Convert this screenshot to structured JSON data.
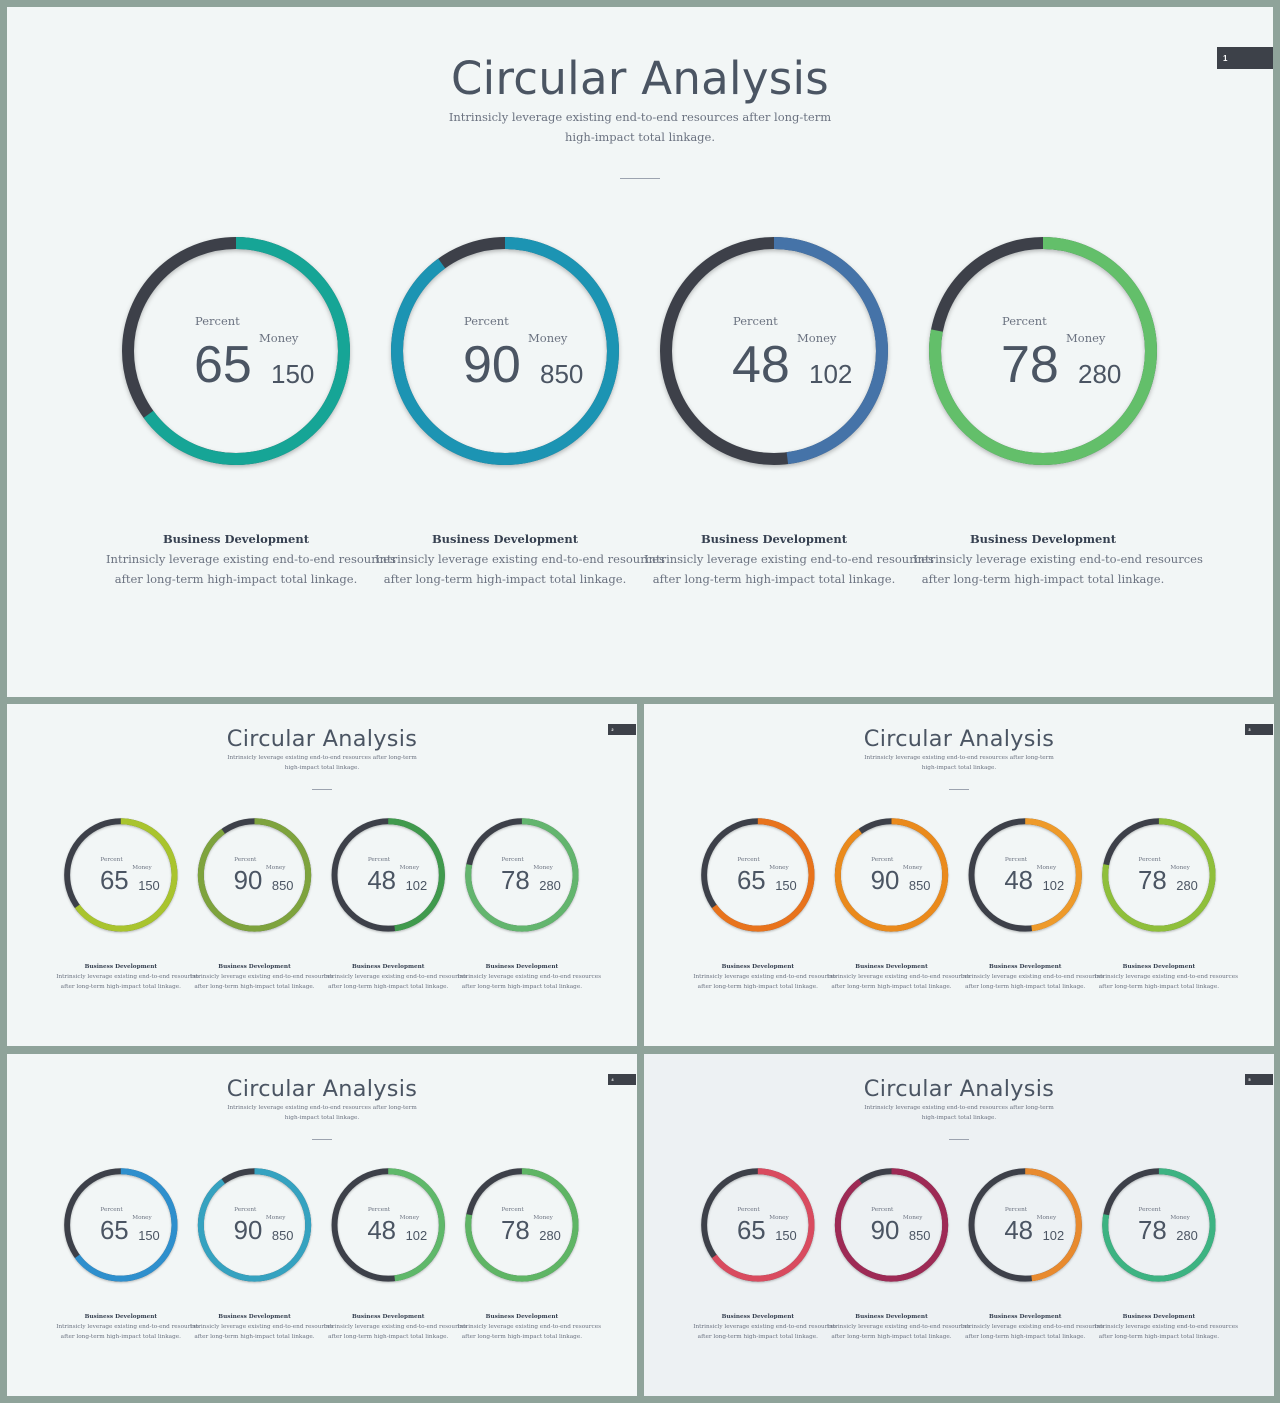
{
  "slides": [
    {
      "number": "1",
      "title": "Circular Analysis",
      "subtitle": [
        "Intrinsicly leverage existing end-to-end resources after long-term",
        "high-impact total linkage."
      ],
      "colors": [
        "#17a596",
        "#1e94b3",
        "#4573a8",
        "#63bf6a"
      ]
    },
    {
      "number": "2",
      "title": "Circular Analysis",
      "subtitle": [
        "Intrinsicly leverage existing end-to-end resources after long-term",
        "high-impact total linkage."
      ],
      "colors": [
        "#a9c42e",
        "#7ea33c",
        "#3f9a4d",
        "#64b56e"
      ]
    },
    {
      "number": "3",
      "title": "Circular Analysis",
      "subtitle": [
        "Intrinsicly leverage existing end-to-end resources after long-term",
        "high-impact total linkage."
      ],
      "colors": [
        "#e8731f",
        "#ea8a1e",
        "#ee9a29",
        "#8fbf3a"
      ]
    },
    {
      "number": "4",
      "title": "Circular Analysis",
      "subtitle": [
        "Intrinsicly leverage existing end-to-end resources after long-term",
        "high-impact total linkage."
      ],
      "colors": [
        "#2e8fcd",
        "#35a2c0",
        "#5fb86a",
        "#5eb565"
      ]
    },
    {
      "number": "5",
      "title": "Circular Analysis",
      "subtitle": [
        "Intrinsicly leverage existing end-to-end resources after long-term",
        "high-impact total linkage."
      ],
      "colors": [
        "#d94b5e",
        "#9e2a54",
        "#e88a2d",
        "#3db382"
      ]
    }
  ],
  "chart_data": {
    "type": "donut-gauges",
    "percent_label": "Percent",
    "money_label": "Money",
    "remainder_color": "#3d4149",
    "items": [
      {
        "percent": 65,
        "money": 150,
        "heading": "Business Development",
        "text": [
          "Intrinsicly leverage existing end-to-end resources",
          "after long-term high-impact total linkage."
        ]
      },
      {
        "percent": 90,
        "money": 850,
        "heading": "Business Development",
        "text": [
          "Intrinsicly leverage existing end-to-end resources",
          "after long-term high-impact total linkage."
        ]
      },
      {
        "percent": 48,
        "money": 102,
        "heading": "Business Development",
        "text": [
          "Intrinsicly leverage existing end-to-end resources",
          "after long-term high-impact total linkage."
        ]
      },
      {
        "percent": 78,
        "money": 280,
        "heading": "Business Development",
        "text": [
          "Intrinsicly leverage existing end-to-end resources",
          "after long-term high-impact total linkage."
        ]
      }
    ]
  }
}
